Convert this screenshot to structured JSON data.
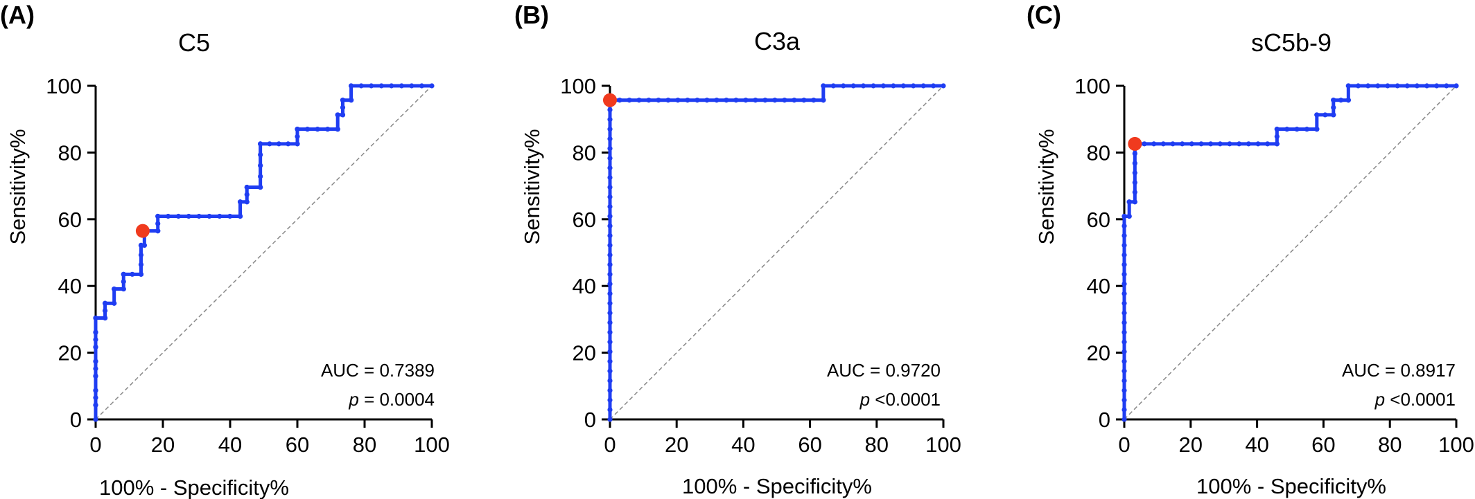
{
  "colors": {
    "roc": "#1f3df2",
    "cutoff": "#f03a1e",
    "diagonal": "#888888"
  },
  "chart_data": [
    {
      "type": "line",
      "panel_label": "(A)",
      "title": "C5",
      "xlabel": "100% - Specificity%",
      "ylabel": "Sensitivity%",
      "xlim": [
        0,
        100
      ],
      "ylim": [
        0,
        100
      ],
      "xticks": [
        "0",
        "20",
        "40",
        "60",
        "80",
        "100"
      ],
      "yticks": [
        "0",
        "20",
        "40",
        "60",
        "80",
        "100"
      ],
      "auc_text": "AUC = 0.7389",
      "p_symbol": "p",
      "p_value": " = 0.0004",
      "series": [
        {
          "x": [
            0,
            0,
            0,
            0,
            0,
            0,
            0,
            0,
            2.8,
            2.8,
            5.5,
            5.5,
            8.3,
            8.3,
            13.5,
            13.5,
            14.5,
            14.5,
            18.5,
            18.5,
            43,
            43,
            45,
            45,
            49,
            49,
            60,
            60,
            72,
            72,
            73.5,
            73.5,
            76,
            76,
            100
          ],
          "y": [
            0,
            4.3,
            8.7,
            13,
            17.4,
            21.7,
            26.1,
            30.4,
            30.4,
            34.8,
            34.8,
            39.1,
            39.1,
            43.5,
            43.5,
            52.2,
            52.2,
            56.5,
            56.5,
            60.9,
            60.9,
            65.2,
            65.2,
            69.6,
            69.6,
            82.6,
            82.6,
            87,
            87,
            91.3,
            91.3,
            95.7,
            95.7,
            100,
            100
          ]
        }
      ],
      "cutoff_point": {
        "x": 14,
        "y": 56.5
      }
    },
    {
      "type": "line",
      "panel_label": "(B)",
      "title": "C3a",
      "xlabel": "100% - Specificity%",
      "ylabel": "Sensitivity%",
      "xlim": [
        0,
        100
      ],
      "ylim": [
        0,
        100
      ],
      "xticks": [
        "0",
        "20",
        "40",
        "60",
        "80",
        "100"
      ],
      "yticks": [
        "0",
        "20",
        "40",
        "60",
        "80",
        "100"
      ],
      "auc_text": "AUC = 0.9720",
      "p_symbol": "p",
      "p_value": " <0.0001",
      "series": [
        {
          "x": [
            0,
            0,
            64,
            64,
            100
          ],
          "y": [
            0,
            95.7,
            95.7,
            100,
            100
          ]
        }
      ],
      "cutoff_point": {
        "x": 0,
        "y": 95.7
      }
    },
    {
      "type": "line",
      "panel_label": "(C)",
      "title": "sC5b-9",
      "xlabel": "100% - Specificity%",
      "ylabel": "Sensitivity%",
      "xlim": [
        0,
        100
      ],
      "ylim": [
        0,
        100
      ],
      "xticks": [
        "0",
        "20",
        "40",
        "60",
        "80",
        "100"
      ],
      "yticks": [
        "0",
        "20",
        "40",
        "60",
        "80",
        "100"
      ],
      "auc_text": "AUC = 0.8917",
      "p_symbol": "p",
      "p_value": " <0.0001",
      "series": [
        {
          "x": [
            0,
            0,
            1.5,
            1.5,
            3.2,
            3.2,
            46,
            46,
            58,
            58,
            63,
            63,
            67.5,
            67.5,
            100
          ],
          "y": [
            0,
            60.9,
            60.9,
            65.2,
            65.2,
            82.6,
            82.6,
            87,
            87,
            91.3,
            91.3,
            95.7,
            95.7,
            100,
            100
          ]
        }
      ],
      "cutoff_point": {
        "x": 3.2,
        "y": 82.6
      }
    }
  ]
}
